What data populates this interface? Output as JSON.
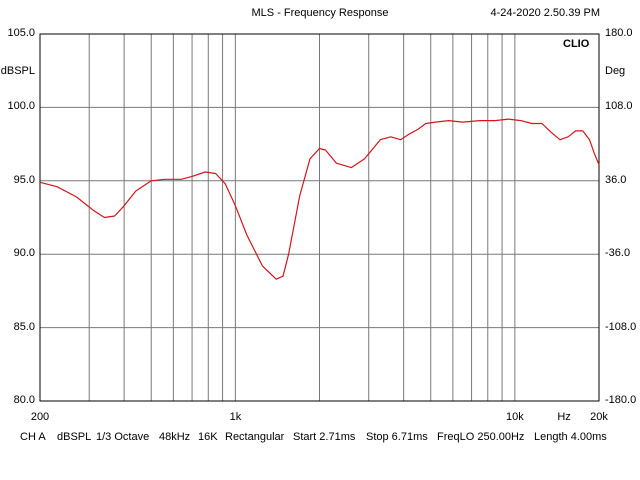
{
  "header": {
    "title": "MLS - Frequency Response",
    "timestamp": "4-24-2020 2.50.39 PM"
  },
  "brand": "CLIO",
  "chart_data": {
    "type": "line",
    "title": "MLS - Frequency Response",
    "xscale": "log",
    "xlim": [
      200,
      20000
    ],
    "ylim": [
      80,
      105
    ],
    "ylabel": "dBSPL",
    "y2label": "Deg",
    "y2lim": [
      -180,
      180
    ],
    "y_ticks": [
      "105.0",
      "100.0",
      "95.0",
      "90.0",
      "85.0",
      "80.0"
    ],
    "y2_ticks": [
      "180.0",
      "108.0",
      "36.0",
      "-36.0",
      "-108.0",
      "-180.0"
    ],
    "x_tick_labels": [
      {
        "x": 200,
        "label": "200"
      },
      {
        "x": 1000,
        "label": "1k"
      },
      {
        "x": 10000,
        "label": "10k"
      },
      {
        "x": 15000,
        "label": "Hz"
      },
      {
        "x": 20000,
        "label": "20k"
      }
    ],
    "grid": true,
    "series": [
      {
        "color": "#d4151b",
        "x": [
          200,
          230,
          270,
          310,
          340,
          370,
          400,
          440,
          500,
          560,
          640,
          700,
          780,
          850,
          920,
          1000,
          1100,
          1250,
          1400,
          1480,
          1550,
          1700,
          1850,
          2000,
          2100,
          2300,
          2600,
          2900,
          3300,
          3600,
          3900,
          4200,
          4500,
          4800,
          5200,
          5800,
          6500,
          7500,
          8500,
          9500,
          10500,
          11500,
          12500,
          13500,
          14500,
          15500,
          16500,
          17500,
          18500,
          19300,
          20000
        ],
        "values": [
          94.9,
          94.6,
          93.9,
          93.0,
          92.5,
          92.6,
          93.3,
          94.3,
          95.0,
          95.1,
          95.1,
          95.3,
          95.6,
          95.5,
          94.8,
          93.3,
          91.3,
          89.2,
          88.3,
          88.5,
          90.0,
          94.0,
          96.5,
          97.2,
          97.1,
          96.2,
          95.9,
          96.5,
          97.8,
          98.0,
          97.8,
          98.2,
          98.5,
          98.9,
          99.0,
          99.1,
          99.0,
          99.1,
          99.1,
          99.2,
          99.1,
          98.9,
          98.9,
          98.3,
          97.8,
          98.0,
          98.4,
          98.4,
          97.8,
          96.8,
          96.1
        ]
      }
    ]
  },
  "footer": {
    "channel": "CH A",
    "unit": "dBSPL",
    "smoothing": "1/3 Octave",
    "sample_rate": "48kHz",
    "size": "16K",
    "window": "Rectangular",
    "start": "Start 2.71ms",
    "stop": "Stop 6.71ms",
    "freq_lo": "FreqLO 250.00Hz",
    "length": "Length 4.00ms"
  }
}
